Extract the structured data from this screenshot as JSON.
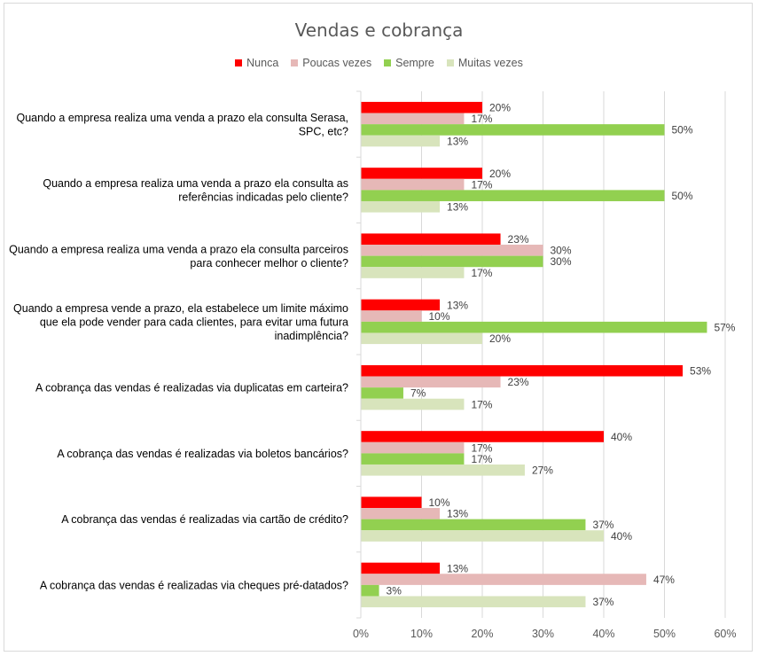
{
  "chart_data": {
    "type": "bar",
    "orientation": "horizontal",
    "title": "Vendas e cobrança",
    "categories": [
      [
        "Quando a empresa realiza uma venda a prazo ela consulta Serasa,",
        "SPC, etc?"
      ],
      [
        "Quando a empresa realiza uma venda a prazo ela consulta as",
        "referências indicadas pelo cliente?"
      ],
      [
        "Quando a empresa realiza uma venda a prazo ela consulta parceiros",
        "para conhecer melhor o cliente?"
      ],
      [
        "Quando a empresa vende a prazo, ela estabelece um limite máximo",
        "que ela pode vender para cada clientes, para evitar uma futura",
        "inadimplência?"
      ],
      [
        "A cobrança das vendas é realizadas via duplicatas em carteira?"
      ],
      [
        "A cobrança das vendas é realizadas via boletos bancários?"
      ],
      [
        "A cobrança das vendas é realizadas via cartão de crédito?"
      ],
      [
        "A cobrança das vendas é realizadas via cheques pré-datados?"
      ]
    ],
    "series": [
      {
        "name": "Nunca",
        "color": "#ff0000",
        "values": [
          20,
          20,
          23,
          13,
          53,
          40,
          10,
          13
        ]
      },
      {
        "name": "Poucas vezes",
        "color": "#e6b8b7",
        "values": [
          17,
          17,
          30,
          10,
          23,
          17,
          13,
          47
        ]
      },
      {
        "name": "Sempre",
        "color": "#92d050",
        "values": [
          50,
          50,
          30,
          57,
          7,
          17,
          37,
          3
        ]
      },
      {
        "name": "Muitas vezes",
        "color": "#d8e4bc",
        "values": [
          13,
          13,
          17,
          20,
          17,
          27,
          40,
          37
        ]
      }
    ],
    "xlim": [
      0,
      60
    ],
    "xticks": [
      "0%",
      "10%",
      "20%",
      "30%",
      "40%",
      "50%",
      "60%"
    ],
    "value_suffix": "%",
    "grid": true,
    "legend_position": "top"
  }
}
